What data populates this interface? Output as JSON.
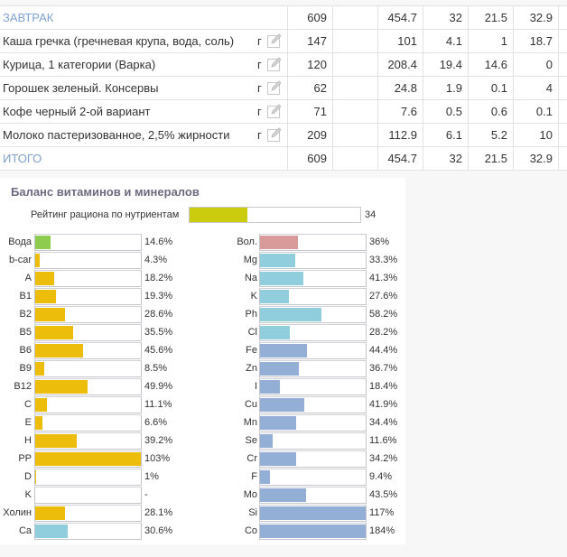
{
  "meal_table": {
    "section_row": {
      "name": "ЗАВТРАК",
      "qty": "609",
      "kcal": "454.7",
      "protein": "32",
      "fat": "21.5",
      "carbs": "32.9"
    },
    "items": [
      {
        "name": "Каша гречка (гречневая крупа, вода, соль)",
        "unit": "г",
        "qty": "147",
        "kcal": "101",
        "protein": "4.1",
        "fat": "1",
        "carbs": "18.7"
      },
      {
        "name": "Курица, 1 категории (Варка)",
        "unit": "г",
        "qty": "120",
        "kcal": "208.4",
        "protein": "19.4",
        "fat": "14.6",
        "carbs": "0"
      },
      {
        "name": "Горошек зеленый. Консервы",
        "unit": "г",
        "qty": "62",
        "kcal": "24.8",
        "protein": "1.9",
        "fat": "0.1",
        "carbs": "4"
      },
      {
        "name": "Кофе черный 2-ой вариант",
        "unit": "г",
        "qty": "71",
        "kcal": "7.6",
        "protein": "0.5",
        "fat": "0.6",
        "carbs": "0.1"
      },
      {
        "name": "Молоко пастеризованное, 2,5% жирности",
        "unit": "г",
        "qty": "209",
        "kcal": "112.9",
        "protein": "6.1",
        "fat": "5.2",
        "carbs": "10"
      }
    ],
    "total_row": {
      "name": "ИТОГО",
      "qty": "609",
      "kcal": "454.7",
      "protein": "32",
      "fat": "21.5",
      "carbs": "32.9"
    },
    "edit_icon": "pencil-edit-icon"
  },
  "vitamin_panel": {
    "title": "Баланс витаминов и минералов",
    "rating": {
      "label": "Рейтинг рациона по нутриентам",
      "value": "34",
      "percent": 34,
      "color": "#cccc0f"
    },
    "colors": {
      "water": "#8dcc4e",
      "vitamin": "#ecbd0b",
      "mineral_macro": "#90cedd",
      "mineral_micro": "#93afd6",
      "fiber": "#d99a9a"
    },
    "left": [
      {
        "label": "Вода",
        "value": "14.6%",
        "percent": 14.6,
        "kind": "water"
      },
      {
        "label": "b-car",
        "value": "4.3%",
        "percent": 4.3,
        "kind": "vitamin"
      },
      {
        "label": "A",
        "value": "18.2%",
        "percent": 18.2,
        "kind": "vitamin"
      },
      {
        "label": "B1",
        "value": "19.3%",
        "percent": 19.3,
        "kind": "vitamin"
      },
      {
        "label": "B2",
        "value": "28.6%",
        "percent": 28.6,
        "kind": "vitamin"
      },
      {
        "label": "B5",
        "value": "35.5%",
        "percent": 35.5,
        "kind": "vitamin"
      },
      {
        "label": "B6",
        "value": "45.6%",
        "percent": 45.6,
        "kind": "vitamin"
      },
      {
        "label": "B9",
        "value": "8.5%",
        "percent": 8.5,
        "kind": "vitamin"
      },
      {
        "label": "B12",
        "value": "49.9%",
        "percent": 49.9,
        "kind": "vitamin"
      },
      {
        "label": "C",
        "value": "11.1%",
        "percent": 11.1,
        "kind": "vitamin"
      },
      {
        "label": "E",
        "value": "6.6%",
        "percent": 6.6,
        "kind": "vitamin"
      },
      {
        "label": "H",
        "value": "39.2%",
        "percent": 39.2,
        "kind": "vitamin"
      },
      {
        "label": "PP",
        "value": "103%",
        "percent": 103,
        "kind": "vitamin"
      },
      {
        "label": "D",
        "value": "1%",
        "percent": 1,
        "kind": "vitamin"
      },
      {
        "label": "K",
        "value": "-",
        "percent": 0,
        "kind": "vitamin"
      },
      {
        "label": "Холин",
        "value": "28.1%",
        "percent": 28.1,
        "kind": "vitamin"
      },
      {
        "label": "Ca",
        "value": "30.6%",
        "percent": 30.6,
        "kind": "mineral_macro"
      }
    ],
    "right": [
      {
        "label": "Вол.",
        "value": "36%",
        "percent": 36,
        "kind": "fiber"
      },
      {
        "label": "Mg",
        "value": "33.3%",
        "percent": 33.3,
        "kind": "mineral_macro"
      },
      {
        "label": "Na",
        "value": "41.3%",
        "percent": 41.3,
        "kind": "mineral_macro"
      },
      {
        "label": "K",
        "value": "27.6%",
        "percent": 27.6,
        "kind": "mineral_macro"
      },
      {
        "label": "Ph",
        "value": "58.2%",
        "percent": 58.2,
        "kind": "mineral_macro"
      },
      {
        "label": "Cl",
        "value": "28.2%",
        "percent": 28.2,
        "kind": "mineral_macro"
      },
      {
        "label": "Fe",
        "value": "44.4%",
        "percent": 44.4,
        "kind": "mineral_micro"
      },
      {
        "label": "Zn",
        "value": "36.7%",
        "percent": 36.7,
        "kind": "mineral_micro"
      },
      {
        "label": "I",
        "value": "18.4%",
        "percent": 18.4,
        "kind": "mineral_micro"
      },
      {
        "label": "Cu",
        "value": "41.9%",
        "percent": 41.9,
        "kind": "mineral_micro"
      },
      {
        "label": "Mn",
        "value": "34.4%",
        "percent": 34.4,
        "kind": "mineral_micro"
      },
      {
        "label": "Se",
        "value": "11.6%",
        "percent": 11.6,
        "kind": "mineral_micro"
      },
      {
        "label": "Cr",
        "value": "34.2%",
        "percent": 34.2,
        "kind": "mineral_micro"
      },
      {
        "label": "F",
        "value": "9.4%",
        "percent": 9.4,
        "kind": "mineral_micro"
      },
      {
        "label": "Mo",
        "value": "43.5%",
        "percent": 43.5,
        "kind": "mineral_micro"
      },
      {
        "label": "Si",
        "value": "117%",
        "percent": 117,
        "kind": "mineral_micro"
      },
      {
        "label": "Co",
        "value": "184%",
        "percent": 184,
        "kind": "mineral_micro"
      }
    ]
  }
}
